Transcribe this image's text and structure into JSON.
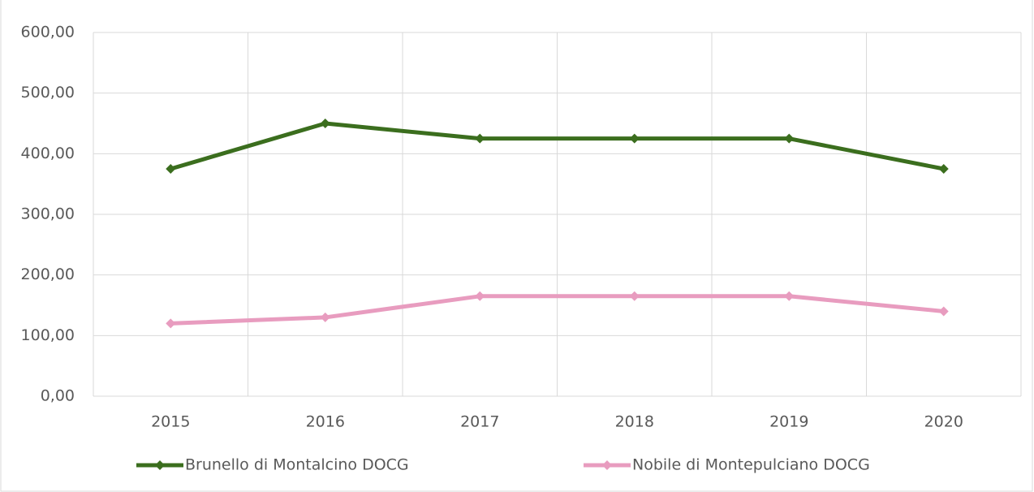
{
  "chart_data": {
    "type": "line",
    "categories": [
      "2015",
      "2016",
      "2017",
      "2018",
      "2019",
      "2020"
    ],
    "series": [
      {
        "name": "Brunello di Montalcino DOCG",
        "color": "#3b6e1e",
        "values": [
          375,
          450,
          425,
          425,
          425,
          375
        ]
      },
      {
        "name": "Nobile di Montepulciano DOCG",
        "color": "#e89cbf",
        "values": [
          120,
          130,
          165,
          165,
          165,
          140
        ]
      }
    ],
    "ylim": [
      0,
      600
    ],
    "yticks": [
      {
        "value": 0,
        "label": "0,00"
      },
      {
        "value": 100,
        "label": "100,00"
      },
      {
        "value": 200,
        "label": "200,00"
      },
      {
        "value": 300,
        "label": "300,00"
      },
      {
        "value": 400,
        "label": "400,00"
      },
      {
        "value": 500,
        "label": "500,00"
      },
      {
        "value": 600,
        "label": "600,00"
      }
    ],
    "grid": true,
    "legend": "bottom"
  }
}
